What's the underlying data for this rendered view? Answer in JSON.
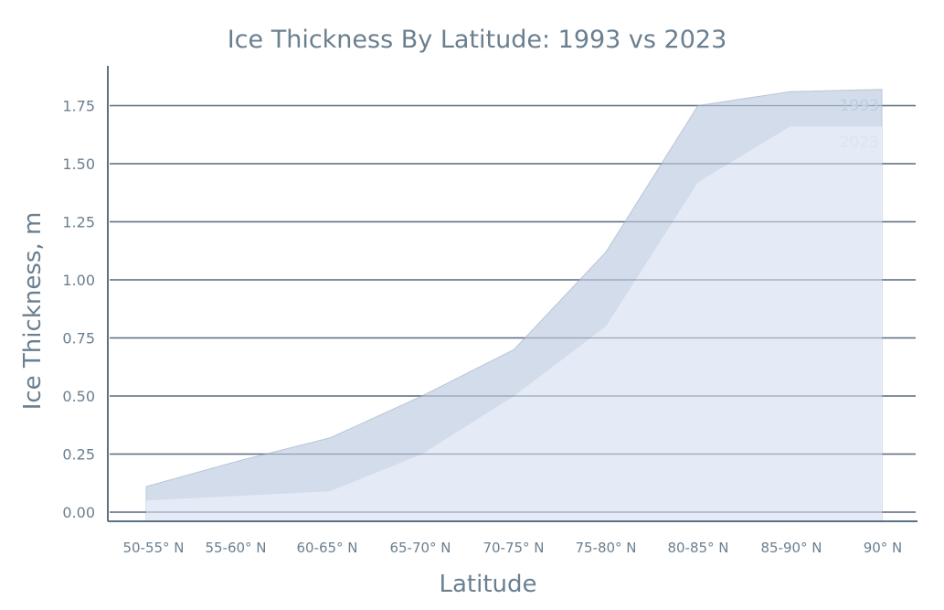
{
  "chart_data": {
    "type": "area",
    "title": "Ice Thickness By Latitude: 1993 vs 2023",
    "xlabel": "Latitude",
    "ylabel": "Ice Thickness, m",
    "categories": [
      "50-55° N",
      "55-60° N",
      "60-65° N",
      "65-70° N",
      "70-75° N",
      "75-80° N",
      "80-85° N",
      "85-90° N",
      "90° N"
    ],
    "ylim": [
      0,
      1.85
    ],
    "yticks": [
      "0.00",
      "0.25",
      "0.50",
      "0.75",
      "1.00",
      "1.25",
      "1.50",
      "1.75"
    ],
    "grid": true,
    "legend_position": "top-right",
    "series": [
      {
        "name": "1993",
        "values": [
          0.11,
          0.22,
          0.32,
          0.5,
          0.7,
          1.12,
          1.75,
          1.81,
          1.82
        ],
        "color": "#d3dcea"
      },
      {
        "name": "2023",
        "values": [
          0.05,
          0.07,
          0.09,
          0.25,
          0.5,
          0.8,
          1.42,
          1.66,
          1.66
        ],
        "color": "#e4ebf6"
      }
    ]
  }
}
